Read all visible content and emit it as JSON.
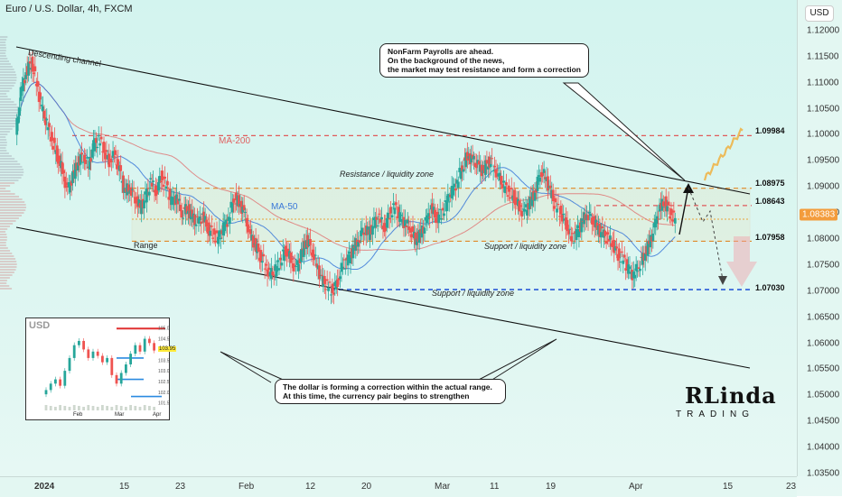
{
  "chart_data": {
    "type": "candlestick",
    "title": "Euro / U.S. Dollar, 4h, FXCM",
    "currency": "USD",
    "ylim": [
      1.035,
      1.125
    ],
    "y_ticks": [
      "1.12000",
      "1.11500",
      "1.11000",
      "1.10500",
      "1.10000",
      "1.09500",
      "1.09000",
      "1.08500",
      "1.08000",
      "1.07500",
      "1.07000",
      "1.06500",
      "1.06000",
      "1.05500",
      "1.05000",
      "1.04500",
      "1.04000",
      "1.03500"
    ],
    "x_ticks": [
      "2024",
      "15",
      "23",
      "Feb",
      "12",
      "20",
      "Mar",
      "11",
      "19",
      "Apr",
      "15",
      "23"
    ],
    "current_price": "1.08383",
    "levels": [
      {
        "value": 1.09984,
        "label": "1.09984",
        "style": "dashed",
        "color": "#e05a5a"
      },
      {
        "value": 1.08975,
        "label": "1.08975",
        "style": "dashed",
        "color": "#e08a2a"
      },
      {
        "value": 1.08643,
        "label": "1.08643",
        "style": "dashed",
        "color": "#e05a5a"
      },
      {
        "value": 1.07958,
        "label": "1.07958",
        "style": "dashed",
        "color": "#e08a2a"
      },
      {
        "value": 1.0703,
        "label": "1.07030",
        "style": "dashed",
        "color": "#2a5ad8"
      }
    ],
    "price_path": [
      [
        1.1,
        1.108,
        1.112,
        1.114,
        1.11,
        1.105,
        1.102,
        1.099,
        1.096,
        1.093,
        1.089,
        1.092,
        1.095,
        1.096,
        1.094,
        1.098,
        1.099,
        1.097,
        1.095,
        1.096
      ],
      [
        1.093,
        1.089,
        1.09,
        1.088,
        1.086,
        1.088,
        1.091,
        1.089,
        1.092,
        1.09,
        1.087,
        1.088,
        1.085,
        1.086,
        1.084,
        1.083,
        1.0845,
        1.082,
        1.081,
        1.08
      ],
      [
        1.082,
        1.084,
        1.088,
        1.087,
        1.085,
        1.081,
        1.079,
        1.077,
        1.075,
        1.073,
        1.074,
        1.076,
        1.078,
        1.076,
        1.074,
        1.077,
        1.08,
        1.078,
        1.075,
        1.072
      ],
      [
        1.071,
        1.07,
        1.072,
        1.075,
        1.076,
        1.078,
        1.08,
        1.082,
        1.081,
        1.083,
        1.084,
        1.082,
        1.085,
        1.086,
        1.084,
        1.083,
        1.082,
        1.08,
        1.081,
        1.083
      ],
      [
        1.086,
        1.084,
        1.085,
        1.087,
        1.089,
        1.091,
        1.094,
        1.096,
        1.095,
        1.094,
        1.093,
        1.095,
        1.094,
        1.092,
        1.09,
        1.089,
        1.088,
        1.086,
        1.085,
        1.087
      ],
      [
        1.089,
        1.093,
        1.092,
        1.089,
        1.086,
        1.085,
        1.083,
        1.08,
        1.081,
        1.083,
        1.085,
        1.084,
        1.082,
        1.081,
        1.08,
        1.079,
        1.077,
        1.076,
        1.074,
        1.073
      ],
      [
        1.075,
        1.077,
        1.079,
        1.082,
        1.086,
        1.087,
        1.085,
        1.0838
      ]
    ],
    "ma_series": [
      {
        "name": "MA-200",
        "label": "MA-200",
        "color": "#e06060"
      },
      {
        "name": "MA-50",
        "label": "MA-50",
        "color": "#3a78d8"
      }
    ],
    "annotations": {
      "channel": "Descending channel",
      "range": "Range",
      "resistance": "Resistance / liquidity zone",
      "support": "Support / liquidity zone",
      "support_low": "Support / liquidity zone"
    },
    "inset": {
      "title": "USD",
      "y_ticks": [
        "105.00",
        "104.50",
        "104.00",
        "103.50",
        "103.00",
        "102.50",
        "102.00",
        "101.50"
      ],
      "x_ticks": [
        "Feb",
        "Mar",
        "Apr"
      ],
      "price": "103.95"
    }
  },
  "callouts": {
    "top": [
      "NonFarm Payrolls are ahead.",
      "On the background of the news,",
      "the market may test resistance and form a correction"
    ],
    "bottom": [
      "The dollar is forming a correction within the actual range.",
      "At this time, the currency pair begins to strengthen"
    ]
  },
  "logo": {
    "main": "RLinda",
    "sub": "TRADING"
  },
  "colors": {
    "up": "#26a69a",
    "down": "#ef5350",
    "accent": "#f39c3c"
  }
}
